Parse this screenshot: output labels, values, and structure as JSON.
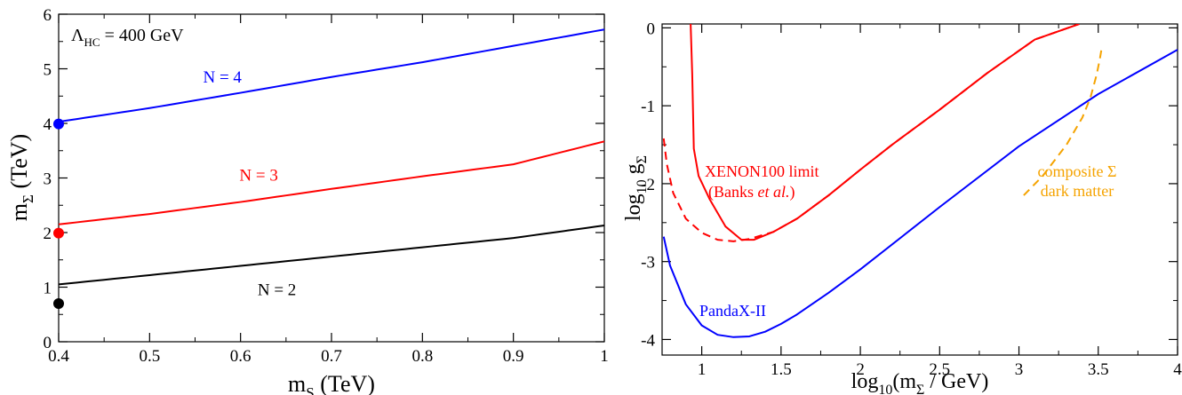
{
  "chart_data": [
    {
      "type": "line",
      "xlabel": "m",
      "xlabel_sub": "S",
      "xlabel_unit": " (TeV)",
      "ylabel": "m",
      "ylabel_sub": "Σ",
      "ylabel_unit": " (TeV)",
      "xlim": [
        0.4,
        1.0
      ],
      "ylim": [
        0,
        6
      ],
      "xticks": [
        0.4,
        0.5,
        0.6,
        0.7,
        0.8,
        0.9,
        1.0
      ],
      "xtick_labels": [
        "0.4",
        "0.5",
        "0.6",
        "0.7",
        "0.8",
        "0.9",
        "1"
      ],
      "yticks": [
        0,
        1,
        2,
        3,
        4,
        5,
        6
      ],
      "ytick_labels": [
        "0",
        "1",
        "2",
        "3",
        "4",
        "5",
        "6"
      ],
      "grid": false,
      "annotation": {
        "text_prefix": "Λ",
        "text_sub": "HC",
        "text_suffix": " = 400 GeV",
        "position": "top-left"
      },
      "series": [
        {
          "name": "N = 4",
          "color": "#0000ff",
          "x": [
            0.4,
            0.5,
            0.6,
            0.7,
            0.8,
            0.9,
            1.0
          ],
          "y": [
            4.03,
            4.28,
            4.56,
            4.85,
            5.12,
            5.42,
            5.72
          ],
          "point": {
            "x": 0.4,
            "y": 3.99
          }
        },
        {
          "name": "N = 3",
          "color": "#ff0000",
          "x": [
            0.4,
            0.5,
            0.6,
            0.7,
            0.8,
            0.9,
            1.0
          ],
          "y": [
            2.15,
            2.34,
            2.56,
            2.8,
            3.03,
            3.25,
            3.67
          ],
          "point": {
            "x": 0.4,
            "y": 1.99
          }
        },
        {
          "name": "N = 2",
          "color": "#000000",
          "x": [
            0.4,
            0.5,
            0.6,
            0.7,
            0.8,
            0.9,
            1.0
          ],
          "y": [
            1.05,
            1.22,
            1.39,
            1.56,
            1.73,
            1.9,
            2.13
          ],
          "point": {
            "x": 0.4,
            "y": 0.7
          }
        }
      ]
    },
    {
      "type": "line",
      "xlabel": "log",
      "xlabel_sub": "10",
      "xlabel_pre": "(m",
      "xlabel_sub2": "Σ",
      "xlabel_unit": " / GeV)",
      "ylabel": "log",
      "ylabel_sub": "10",
      "ylabel_mid": " g",
      "ylabel_sub2": "Σ",
      "xlim": [
        0.75,
        4.0
      ],
      "ylim": [
        -4.2,
        0.05
      ],
      "xticks": [
        1,
        1.5,
        2,
        2.5,
        3,
        3.5,
        4
      ],
      "xtick_labels": [
        "1",
        "1.5",
        "2",
        "2.5",
        "3",
        "3.5",
        "4"
      ],
      "yticks": [
        0,
        -1,
        -2,
        -3,
        -4
      ],
      "ytick_labels": [
        "0",
        "-1",
        "-2",
        "-3",
        "-4"
      ],
      "grid": false,
      "labels": {
        "xenon_line1": "XENON100 limit",
        "xenon_line2_pre": "(Banks ",
        "xenon_line2_italic": "et al.",
        "xenon_line2_post": ")",
        "panda": "PandaX-II",
        "composite_line1": "composite Σ",
        "composite_line2": "dark matter"
      },
      "series": [
        {
          "name": "XENON100 limit",
          "color": "#ff0000",
          "style": "solid",
          "x": [
            0.93,
            0.94,
            0.95,
            0.98,
            1.05,
            1.15,
            1.25,
            1.33,
            1.45,
            1.6,
            1.8,
            2.0,
            2.2,
            2.5,
            2.8,
            3.1,
            3.38
          ],
          "y": [
            0.05,
            -0.6,
            -1.55,
            -1.9,
            -2.2,
            -2.55,
            -2.72,
            -2.72,
            -2.62,
            -2.45,
            -2.15,
            -1.82,
            -1.5,
            -1.05,
            -0.58,
            -0.15,
            0.05
          ]
        },
        {
          "name": "XENON100 limit (Banks et al.)",
          "color": "#ff0000",
          "style": "dashed",
          "x": [
            0.76,
            0.78,
            0.82,
            0.9,
            1.0,
            1.1,
            1.2,
            1.3,
            1.45,
            1.6,
            1.8,
            2.0,
            2.2,
            2.5,
            2.8,
            3.1,
            3.38
          ],
          "y": [
            -1.42,
            -1.75,
            -2.12,
            -2.45,
            -2.63,
            -2.72,
            -2.74,
            -2.71,
            -2.62,
            -2.45,
            -2.15,
            -1.82,
            -1.5,
            -1.05,
            -0.58,
            -0.15,
            0.05
          ]
        },
        {
          "name": "PandaX-II",
          "color": "#0000ff",
          "style": "solid",
          "x": [
            0.76,
            0.8,
            0.9,
            1.0,
            1.1,
            1.2,
            1.3,
            1.4,
            1.5,
            1.6,
            1.8,
            2.0,
            2.5,
            3.0,
            3.5,
            4.0
          ],
          "y": [
            -2.68,
            -3.05,
            -3.55,
            -3.82,
            -3.94,
            -3.97,
            -3.96,
            -3.9,
            -3.8,
            -3.68,
            -3.4,
            -3.1,
            -2.3,
            -1.52,
            -0.85,
            -0.28
          ]
        },
        {
          "name": "composite Σ dark matter",
          "color": "#f5a300",
          "style": "dashed",
          "x": [
            3.03,
            3.15,
            3.3,
            3.4,
            3.45,
            3.49,
            3.51,
            3.52
          ],
          "y": [
            -2.15,
            -1.9,
            -1.5,
            -1.15,
            -0.9,
            -0.6,
            -0.4,
            -0.28
          ]
        }
      ]
    }
  ]
}
